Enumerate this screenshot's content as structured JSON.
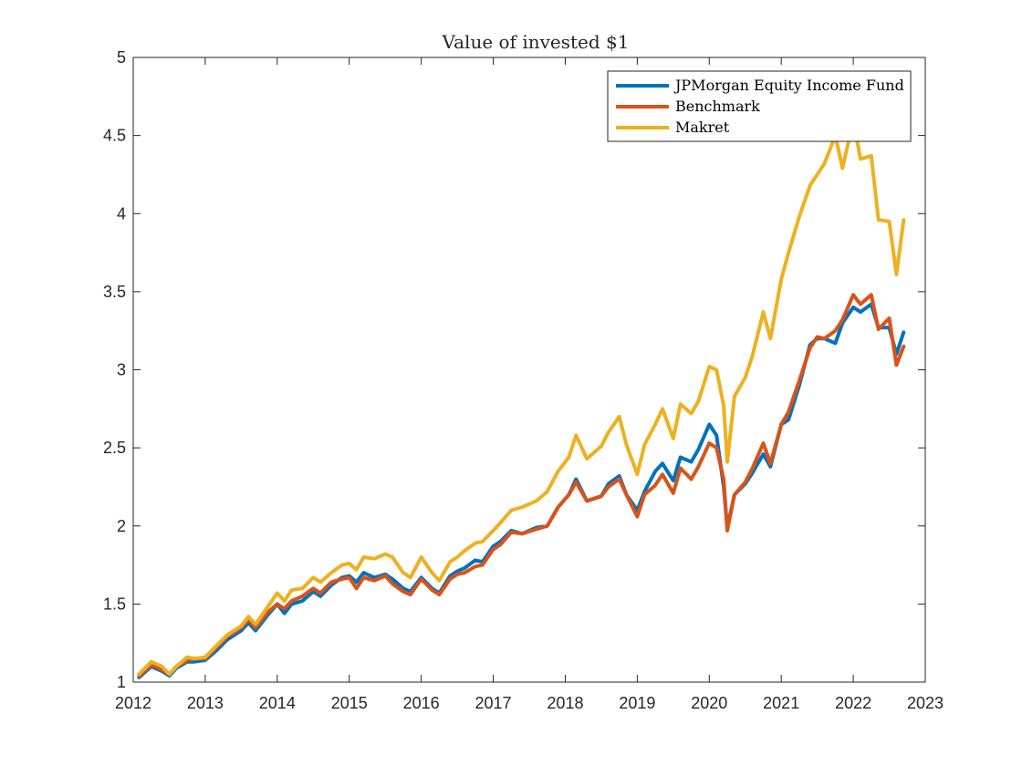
{
  "chart_data": {
    "type": "line",
    "title": "Value of invested $1",
    "xlabel": "",
    "ylabel": "",
    "xlim": [
      2012,
      2023
    ],
    "ylim": [
      1,
      5
    ],
    "xticks": [
      2012,
      2013,
      2014,
      2015,
      2016,
      2017,
      2018,
      2019,
      2020,
      2021,
      2022,
      2023
    ],
    "xtick_labels": [
      "2012",
      "2013",
      "2014",
      "2015",
      "2016",
      "2017",
      "2018",
      "2019",
      "2020",
      "2021",
      "2022",
      "2023"
    ],
    "yticks": [
      1,
      1.5,
      2,
      2.5,
      3,
      3.5,
      4,
      4.5,
      5
    ],
    "ytick_labels": [
      "1",
      "1.5",
      "2",
      "2.5",
      "3",
      "3.5",
      "4",
      "4.5",
      "5"
    ],
    "grid": false,
    "legend_position": "top-right",
    "series": [
      {
        "name": "JPMorgan Equity Income Fund",
        "color": "#0072BD",
        "x": [
          2012.08,
          2012.25,
          2012.4,
          2012.5,
          2012.6,
          2012.75,
          2012.85,
          2013.0,
          2013.15,
          2013.3,
          2013.5,
          2013.6,
          2013.7,
          2013.85,
          2014.0,
          2014.1,
          2014.2,
          2014.35,
          2014.5,
          2014.6,
          2014.75,
          2014.9,
          2015.0,
          2015.1,
          2015.2,
          2015.35,
          2015.5,
          2015.6,
          2015.75,
          2015.85,
          2016.0,
          2016.15,
          2016.25,
          2016.4,
          2016.5,
          2016.6,
          2016.75,
          2016.85,
          2017.0,
          2017.1,
          2017.25,
          2017.4,
          2017.6,
          2017.75,
          2017.9,
          2018.05,
          2018.15,
          2018.3,
          2018.5,
          2018.6,
          2018.75,
          2018.85,
          2019.0,
          2019.1,
          2019.25,
          2019.35,
          2019.5,
          2019.6,
          2019.75,
          2019.85,
          2020.0,
          2020.1,
          2020.2,
          2020.25,
          2020.35,
          2020.5,
          2020.6,
          2020.75,
          2020.85,
          2021.0,
          2021.1,
          2021.25,
          2021.4,
          2021.5,
          2021.6,
          2021.75,
          2021.85,
          2022.0,
          2022.1,
          2022.25,
          2022.35,
          2022.5,
          2022.6,
          2022.7
        ],
        "y": [
          1.03,
          1.1,
          1.07,
          1.04,
          1.09,
          1.13,
          1.13,
          1.14,
          1.2,
          1.27,
          1.33,
          1.38,
          1.33,
          1.42,
          1.5,
          1.44,
          1.5,
          1.52,
          1.58,
          1.55,
          1.62,
          1.67,
          1.68,
          1.64,
          1.7,
          1.67,
          1.69,
          1.66,
          1.6,
          1.58,
          1.67,
          1.6,
          1.57,
          1.68,
          1.71,
          1.73,
          1.78,
          1.77,
          1.87,
          1.9,
          1.97,
          1.95,
          1.99,
          2.0,
          2.12,
          2.2,
          2.3,
          2.16,
          2.19,
          2.27,
          2.32,
          2.2,
          2.1,
          2.22,
          2.35,
          2.4,
          2.29,
          2.44,
          2.41,
          2.49,
          2.65,
          2.58,
          2.25,
          1.99,
          2.2,
          2.27,
          2.34,
          2.46,
          2.38,
          2.65,
          2.68,
          2.9,
          3.16,
          3.2,
          3.2,
          3.17,
          3.3,
          3.4,
          3.37,
          3.42,
          3.27,
          3.27,
          3.1,
          3.24
        ]
      },
      {
        "name": "Benchmark",
        "color": "#D95319",
        "x": [
          2012.08,
          2012.25,
          2012.4,
          2012.5,
          2012.6,
          2012.75,
          2012.85,
          2013.0,
          2013.15,
          2013.3,
          2013.5,
          2013.6,
          2013.7,
          2013.85,
          2014.0,
          2014.1,
          2014.2,
          2014.35,
          2014.5,
          2014.6,
          2014.75,
          2014.9,
          2015.0,
          2015.1,
          2015.2,
          2015.35,
          2015.5,
          2015.6,
          2015.75,
          2015.85,
          2016.0,
          2016.15,
          2016.25,
          2016.4,
          2016.5,
          2016.6,
          2016.75,
          2016.85,
          2017.0,
          2017.1,
          2017.25,
          2017.4,
          2017.6,
          2017.75,
          2017.9,
          2018.05,
          2018.15,
          2018.3,
          2018.5,
          2018.6,
          2018.75,
          2018.85,
          2019.0,
          2019.1,
          2019.25,
          2019.35,
          2019.5,
          2019.6,
          2019.75,
          2019.85,
          2020.0,
          2020.1,
          2020.2,
          2020.25,
          2020.35,
          2020.5,
          2020.6,
          2020.75,
          2020.85,
          2021.0,
          2021.1,
          2021.25,
          2021.4,
          2021.5,
          2021.6,
          2021.75,
          2021.85,
          2022.0,
          2022.1,
          2022.25,
          2022.35,
          2022.5,
          2022.6,
          2022.7
        ],
        "y": [
          1.04,
          1.11,
          1.08,
          1.05,
          1.1,
          1.14,
          1.15,
          1.15,
          1.22,
          1.29,
          1.35,
          1.4,
          1.35,
          1.44,
          1.5,
          1.47,
          1.52,
          1.55,
          1.6,
          1.57,
          1.64,
          1.66,
          1.67,
          1.6,
          1.67,
          1.65,
          1.68,
          1.63,
          1.58,
          1.56,
          1.66,
          1.59,
          1.56,
          1.66,
          1.69,
          1.7,
          1.74,
          1.75,
          1.85,
          1.88,
          1.96,
          1.95,
          1.98,
          2.0,
          2.12,
          2.2,
          2.28,
          2.16,
          2.19,
          2.25,
          2.3,
          2.2,
          2.06,
          2.2,
          2.26,
          2.33,
          2.21,
          2.37,
          2.3,
          2.38,
          2.53,
          2.5,
          2.3,
          1.97,
          2.2,
          2.28,
          2.37,
          2.53,
          2.4,
          2.65,
          2.73,
          2.93,
          3.14,
          3.21,
          3.2,
          3.25,
          3.32,
          3.48,
          3.42,
          3.48,
          3.26,
          3.33,
          3.03,
          3.15
        ]
      },
      {
        "name": "Makret",
        "color": "#EDB120",
        "x": [
          2012.08,
          2012.25,
          2012.4,
          2012.5,
          2012.6,
          2012.75,
          2012.85,
          2013.0,
          2013.15,
          2013.3,
          2013.5,
          2013.6,
          2013.7,
          2013.85,
          2014.0,
          2014.1,
          2014.2,
          2014.35,
          2014.5,
          2014.6,
          2014.75,
          2014.9,
          2015.0,
          2015.1,
          2015.2,
          2015.35,
          2015.5,
          2015.6,
          2015.75,
          2015.85,
          2016.0,
          2016.15,
          2016.25,
          2016.4,
          2016.5,
          2016.6,
          2016.75,
          2016.85,
          2017.0,
          2017.1,
          2017.25,
          2017.4,
          2017.6,
          2017.75,
          2017.9,
          2018.05,
          2018.15,
          2018.3,
          2018.5,
          2018.6,
          2018.75,
          2018.85,
          2019.0,
          2019.1,
          2019.25,
          2019.35,
          2019.5,
          2019.6,
          2019.75,
          2019.85,
          2020.0,
          2020.1,
          2020.2,
          2020.25,
          2020.35,
          2020.5,
          2020.6,
          2020.75,
          2020.85,
          2021.0,
          2021.1,
          2021.25,
          2021.4,
          2021.5,
          2021.6,
          2021.75,
          2021.85,
          2022.0,
          2022.1,
          2022.25,
          2022.35,
          2022.5,
          2022.6,
          2022.7
        ],
        "y": [
          1.05,
          1.13,
          1.1,
          1.05,
          1.1,
          1.16,
          1.15,
          1.16,
          1.23,
          1.3,
          1.36,
          1.42,
          1.37,
          1.47,
          1.57,
          1.52,
          1.59,
          1.6,
          1.67,
          1.64,
          1.7,
          1.75,
          1.76,
          1.72,
          1.8,
          1.79,
          1.82,
          1.8,
          1.7,
          1.67,
          1.8,
          1.7,
          1.65,
          1.77,
          1.8,
          1.84,
          1.89,
          1.9,
          1.97,
          2.02,
          2.1,
          2.12,
          2.16,
          2.22,
          2.35,
          2.44,
          2.58,
          2.43,
          2.51,
          2.6,
          2.7,
          2.52,
          2.33,
          2.52,
          2.65,
          2.75,
          2.56,
          2.78,
          2.72,
          2.8,
          3.02,
          3.0,
          2.77,
          2.41,
          2.83,
          2.95,
          3.09,
          3.37,
          3.2,
          3.58,
          3.75,
          3.98,
          4.18,
          4.25,
          4.32,
          4.5,
          4.29,
          4.6,
          4.35,
          4.37,
          3.96,
          3.95,
          3.61,
          3.96
        ]
      }
    ]
  }
}
